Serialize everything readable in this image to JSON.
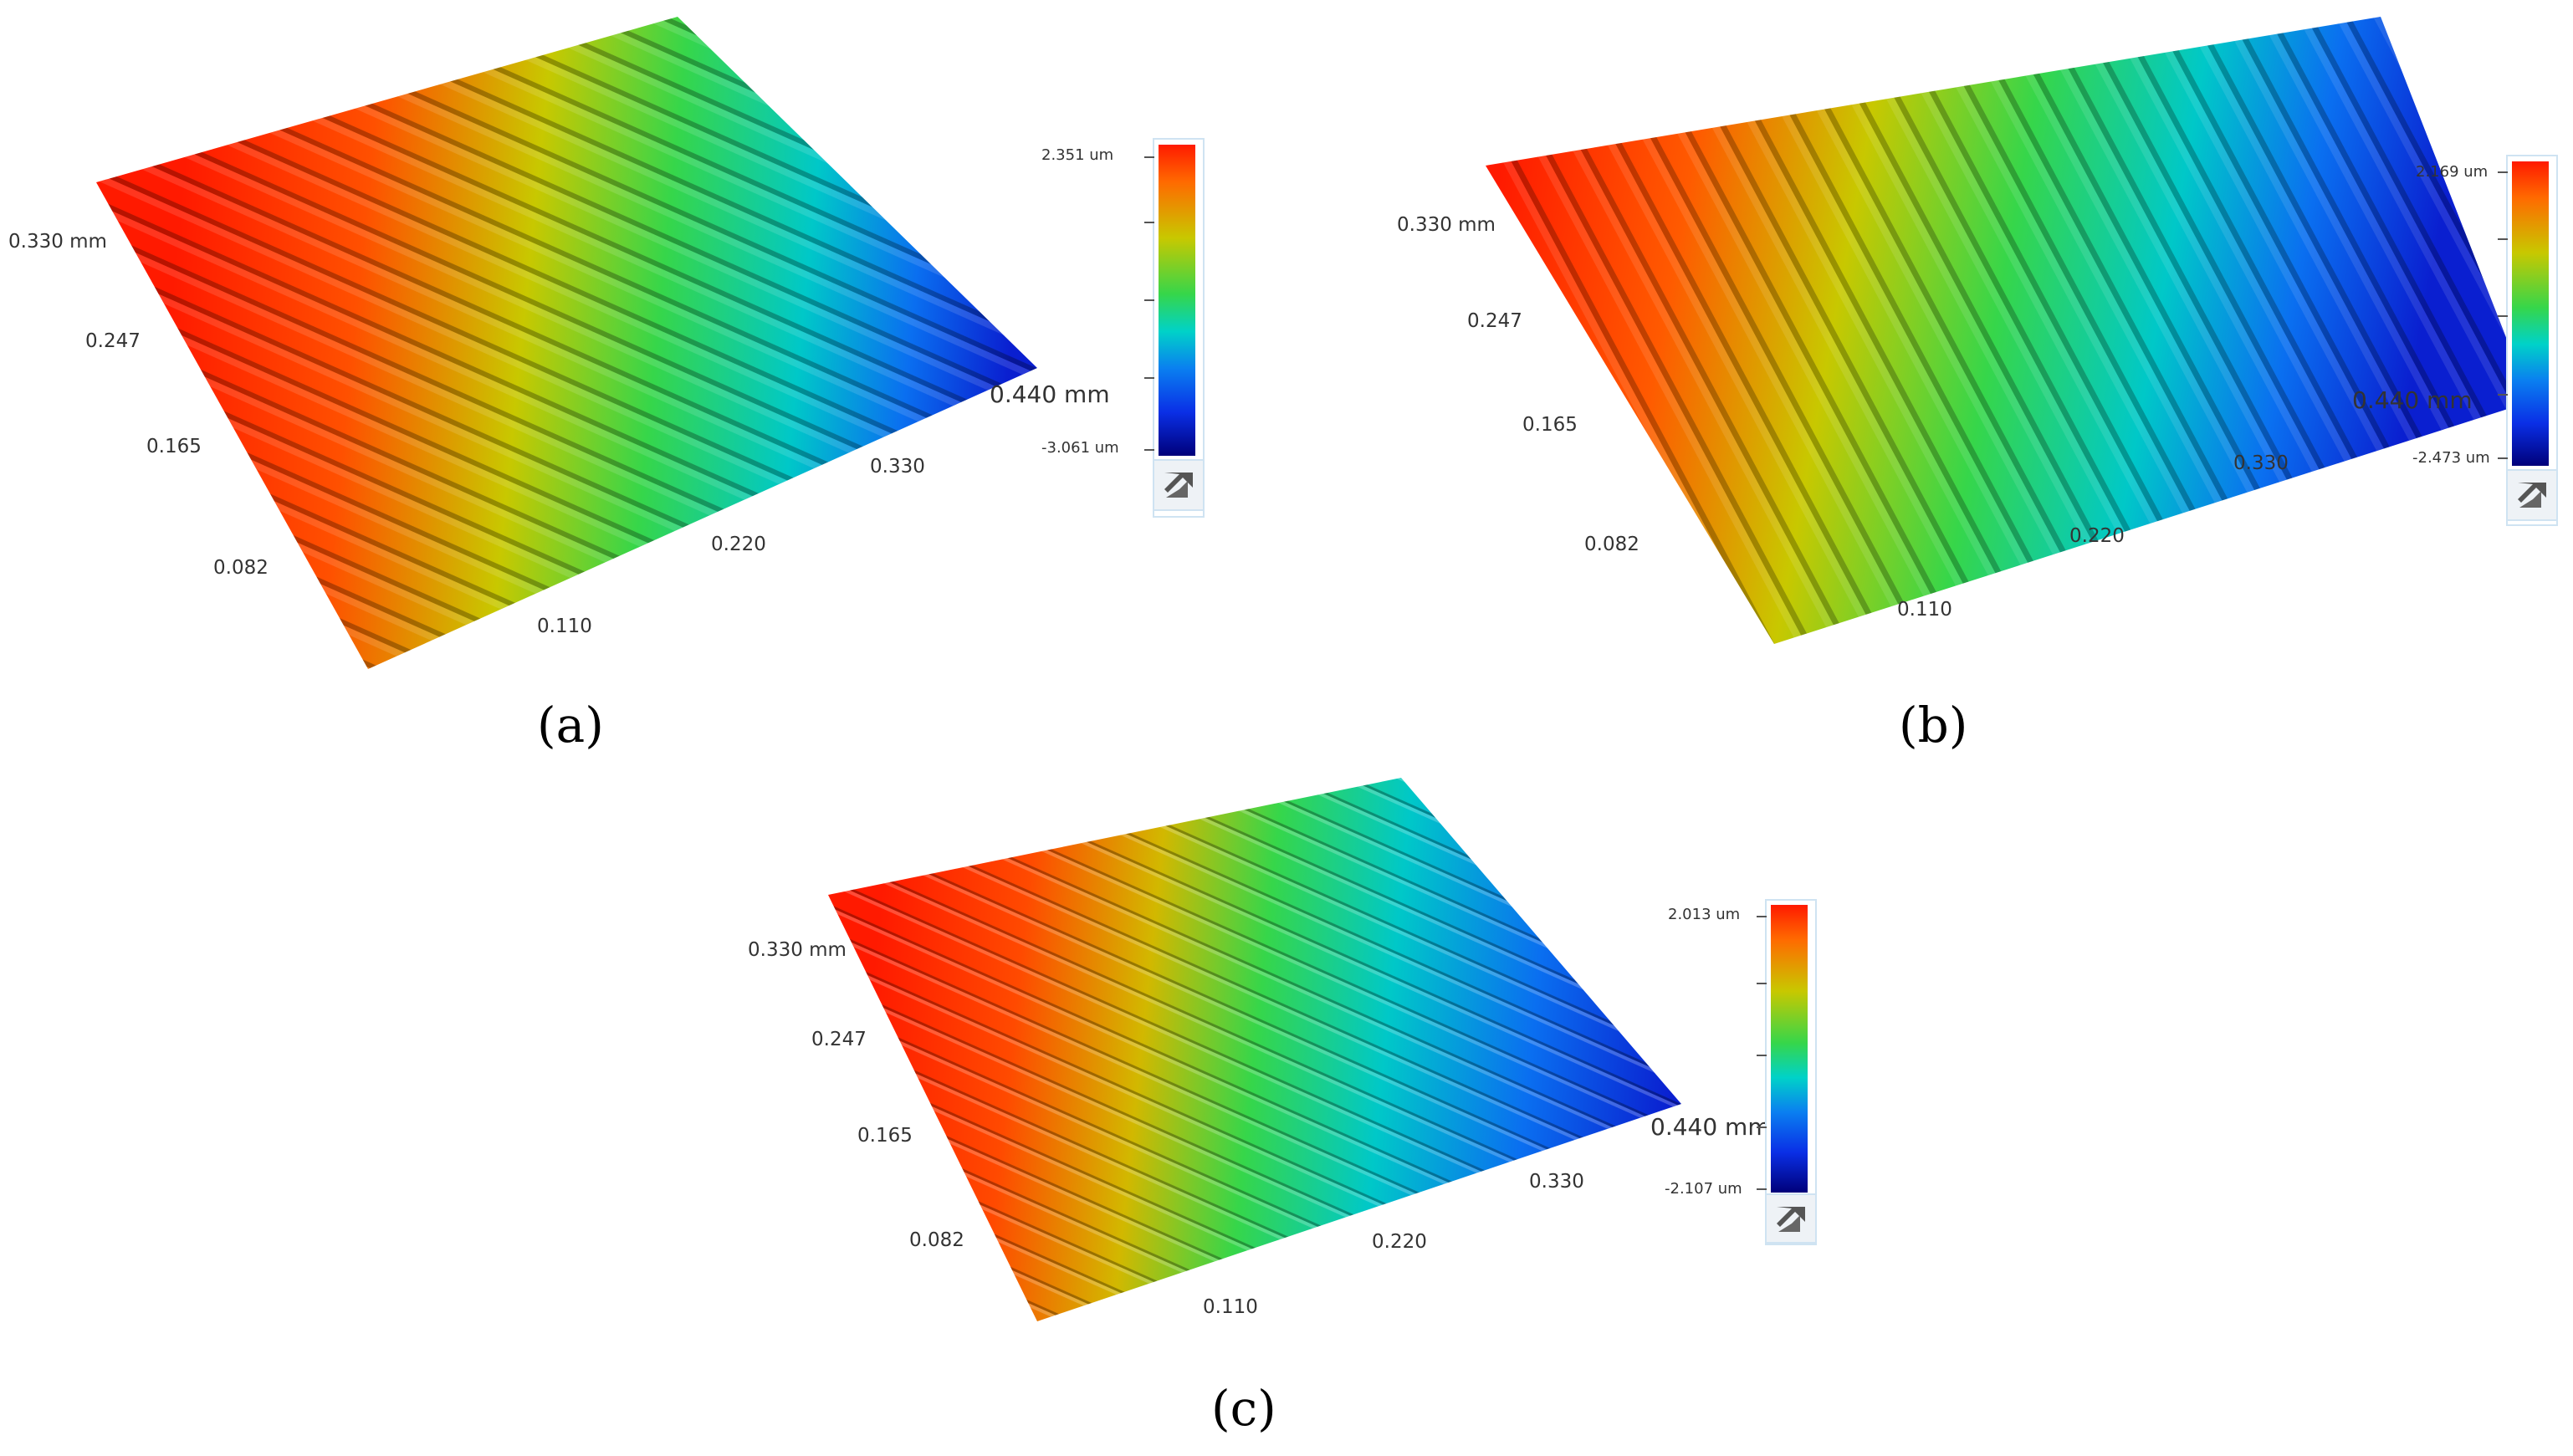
{
  "panels": [
    {
      "caption": "(a)",
      "axes": {
        "y_top": "0.330 mm",
        "y_ticks": [
          "0.247",
          "0.165",
          "0.082"
        ],
        "x_end": "0.440 mm",
        "x_ticks": [
          "0.110",
          "0.220",
          "0.330"
        ]
      },
      "colorbar": {
        "max_label": "2.351 um",
        "min_label": "-3.061 um",
        "max": 2.351,
        "min": -3.061
      }
    },
    {
      "caption": "(b)",
      "axes": {
        "y_top": "0.330 mm",
        "y_ticks": [
          "0.247",
          "0.165",
          "0.082"
        ],
        "x_end": "0.440 mm",
        "x_ticks": [
          "0.110",
          "0.220",
          "0.330"
        ]
      },
      "colorbar": {
        "max_label": "2.169 um",
        "min_label": "-2.473 um",
        "max": 2.169,
        "min": -2.473
      }
    },
    {
      "caption": "(c)",
      "axes": {
        "y_top": "0.330 mm",
        "y_ticks": [
          "0.247",
          "0.165",
          "0.082"
        ],
        "x_end": "0.440 mm",
        "x_ticks": [
          "0.110",
          "0.220",
          "0.330"
        ]
      },
      "colorbar": {
        "max_label": "2.013 um",
        "min_label": "-2.107 um",
        "max": 2.013,
        "min": -2.107
      }
    }
  ],
  "colors": {
    "high": "#ff1a00",
    "mid": "#36d64a",
    "low": "#00007a"
  },
  "icons": {
    "colorbar_button": "corner-arrow-icon"
  }
}
